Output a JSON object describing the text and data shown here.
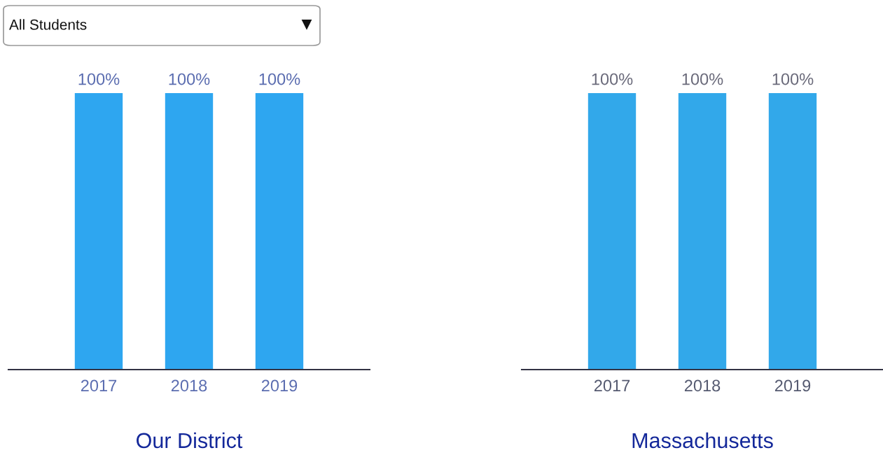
{
  "chart_data": [
    {
      "type": "bar",
      "title": "Our District",
      "categories": [
        "2017",
        "2018",
        "2019"
      ],
      "values": [
        100,
        100,
        100
      ],
      "value_labels": [
        "100%",
        "100%",
        "100%"
      ],
      "color": "#2ea6f0",
      "annotations": [
        "All Students"
      ]
    },
    {
      "type": "bar",
      "title": "Massachusetts",
      "categories": [
        "2017",
        "2018",
        "2019"
      ],
      "values": [
        100,
        100,
        100
      ],
      "value_labels": [
        "100%",
        "100%",
        "100%"
      ],
      "color": "#32a8ea"
    }
  ]
}
